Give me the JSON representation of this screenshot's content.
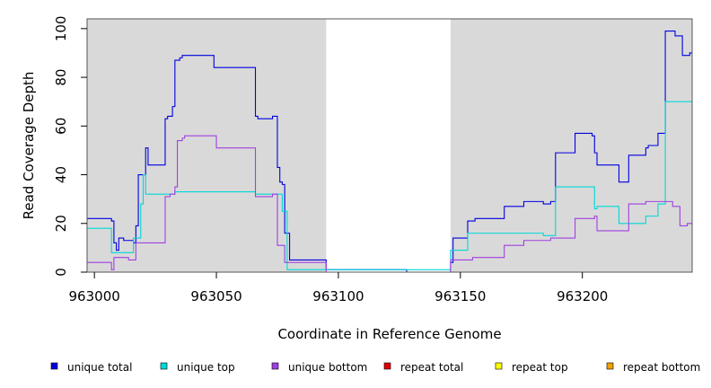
{
  "chart_data": {
    "type": "line",
    "title": "",
    "xlabel": "Coordinate in Reference Genome",
    "ylabel": "Read Coverage Depth",
    "xlim": [
      962997,
      963245
    ],
    "ylim": [
      0,
      104
    ],
    "x_ticks": [
      963000,
      963050,
      963100,
      963150,
      963200
    ],
    "y_ticks": [
      0,
      20,
      40,
      60,
      80,
      100
    ],
    "x_tick_labels": [
      "963000",
      "963050",
      "963100",
      "963150",
      "963200"
    ],
    "y_tick_labels": [
      "0",
      "20",
      "40",
      "60",
      "80",
      "100"
    ],
    "grid": false,
    "background_color": "#d9d9d9",
    "unshaded_region": [
      963095,
      963146
    ],
    "legend_position": "bottom",
    "series": [
      {
        "name": "unique total",
        "color": "#0000e0",
        "points": [
          [
            962997,
            22
          ],
          [
            963002,
            22
          ],
          [
            963002,
            22
          ],
          [
            963007,
            22
          ],
          [
            963007,
            21
          ],
          [
            963008,
            21
          ],
          [
            963008,
            12
          ],
          [
            963009,
            12
          ],
          [
            963009,
            9
          ],
          [
            963010,
            9
          ],
          [
            963010,
            14
          ],
          [
            963012,
            14
          ],
          [
            963012,
            13
          ],
          [
            963016,
            13
          ],
          [
            963016,
            12
          ],
          [
            963017,
            12
          ],
          [
            963017,
            19
          ],
          [
            963018,
            19
          ],
          [
            963018,
            40
          ],
          [
            963021,
            40
          ],
          [
            963021,
            51
          ],
          [
            963022,
            51
          ],
          [
            963022,
            44
          ],
          [
            963026,
            44
          ],
          [
            963026,
            44
          ],
          [
            963029,
            44
          ],
          [
            963029,
            63
          ],
          [
            963030,
            63
          ],
          [
            963030,
            64
          ],
          [
            963032,
            64
          ],
          [
            963032,
            68
          ],
          [
            963033,
            68
          ],
          [
            963033,
            87
          ],
          [
            963035,
            87
          ],
          [
            963035,
            88
          ],
          [
            963036,
            88
          ],
          [
            963036,
            89
          ],
          [
            963045,
            89
          ],
          [
            963045,
            89
          ],
          [
            963049,
            89
          ],
          [
            963049,
            84
          ],
          [
            963063,
            84
          ],
          [
            963063,
            84
          ],
          [
            963066,
            84
          ],
          [
            963066,
            64
          ],
          [
            963067,
            64
          ],
          [
            963067,
            63
          ],
          [
            963073,
            63
          ],
          [
            963073,
            64
          ],
          [
            963075,
            64
          ],
          [
            963075,
            43
          ],
          [
            963076,
            43
          ],
          [
            963076,
            37
          ],
          [
            963077,
            37
          ],
          [
            963077,
            36
          ],
          [
            963078,
            36
          ],
          [
            963078,
            16
          ],
          [
            963080,
            16
          ],
          [
            963080,
            5
          ],
          [
            963095,
            5
          ],
          [
            963095,
            1
          ],
          [
            963105,
            1
          ],
          [
            963105,
            1
          ],
          [
            963128,
            1
          ],
          [
            963128,
            0
          ],
          [
            963146,
            0
          ],
          [
            963146,
            4
          ],
          [
            963147,
            4
          ],
          [
            963147,
            14
          ],
          [
            963153,
            14
          ],
          [
            963153,
            21
          ],
          [
            963156,
            21
          ],
          [
            963156,
            22
          ],
          [
            963161,
            22
          ],
          [
            963161,
            22
          ],
          [
            963168,
            22
          ],
          [
            963168,
            27
          ],
          [
            963176,
            27
          ],
          [
            963176,
            29
          ],
          [
            963184,
            29
          ],
          [
            963184,
            28
          ],
          [
            963187,
            28
          ],
          [
            963187,
            29
          ],
          [
            963189,
            29
          ],
          [
            963189,
            49
          ],
          [
            963197,
            49
          ],
          [
            963197,
            57
          ],
          [
            963204,
            57
          ],
          [
            963204,
            56
          ],
          [
            963205,
            56
          ],
          [
            963205,
            49
          ],
          [
            963206,
            49
          ],
          [
            963206,
            44
          ],
          [
            963212,
            44
          ],
          [
            963212,
            44
          ],
          [
            963215,
            44
          ],
          [
            963215,
            37
          ],
          [
            963219,
            37
          ],
          [
            963219,
            48
          ],
          [
            963226,
            48
          ],
          [
            963226,
            51
          ],
          [
            963227,
            51
          ],
          [
            963227,
            52
          ],
          [
            963231,
            52
          ],
          [
            963231,
            57
          ],
          [
            963234,
            57
          ],
          [
            963234,
            99
          ],
          [
            963238,
            99
          ],
          [
            963238,
            97
          ],
          [
            963241,
            97
          ],
          [
            963241,
            89
          ],
          [
            963244,
            89
          ],
          [
            963244,
            90
          ],
          [
            963245,
            90
          ]
        ]
      },
      {
        "name": "unique top",
        "color": "#00d8d8",
        "points": [
          [
            962997,
            18
          ],
          [
            963005,
            18
          ],
          [
            963005,
            18
          ],
          [
            963007,
            18
          ],
          [
            963007,
            8
          ],
          [
            963016,
            8
          ],
          [
            963016,
            14
          ],
          [
            963019,
            14
          ],
          [
            963019,
            28
          ],
          [
            963020,
            28
          ],
          [
            963020,
            40
          ],
          [
            963021,
            40
          ],
          [
            963021,
            32
          ],
          [
            963033,
            32
          ],
          [
            963033,
            33
          ],
          [
            963063,
            33
          ],
          [
            963063,
            33
          ],
          [
            963066,
            33
          ],
          [
            963066,
            32
          ],
          [
            963073,
            32
          ],
          [
            963073,
            32
          ],
          [
            963077,
            32
          ],
          [
            963077,
            25
          ],
          [
            963079,
            25
          ],
          [
            963079,
            1
          ],
          [
            963095,
            1
          ],
          [
            963095,
            1
          ],
          [
            963146,
            1
          ],
          [
            963146,
            9
          ],
          [
            963153,
            9
          ],
          [
            963153,
            16
          ],
          [
            963170,
            16
          ],
          [
            963170,
            16
          ],
          [
            963184,
            16
          ],
          [
            963184,
            15
          ],
          [
            963189,
            15
          ],
          [
            963189,
            35
          ],
          [
            963202,
            35
          ],
          [
            963202,
            35
          ],
          [
            963205,
            35
          ],
          [
            963205,
            26
          ],
          [
            963206,
            26
          ],
          [
            963206,
            27
          ],
          [
            963215,
            27
          ],
          [
            963215,
            20
          ],
          [
            963226,
            20
          ],
          [
            963226,
            23
          ],
          [
            963231,
            23
          ],
          [
            963231,
            28
          ],
          [
            963234,
            28
          ],
          [
            963234,
            70
          ],
          [
            963245,
            70
          ]
        ]
      },
      {
        "name": "unique bottom",
        "color": "#a040e0",
        "points": [
          [
            962997,
            4
          ],
          [
            963004,
            4
          ],
          [
            963004,
            4
          ],
          [
            963007,
            4
          ],
          [
            963007,
            1
          ],
          [
            963008,
            1
          ],
          [
            963008,
            6
          ],
          [
            963012,
            6
          ],
          [
            963012,
            6
          ],
          [
            963014,
            6
          ],
          [
            963014,
            5
          ],
          [
            963017,
            5
          ],
          [
            963017,
            12
          ],
          [
            963026,
            12
          ],
          [
            963026,
            12
          ],
          [
            963029,
            12
          ],
          [
            963029,
            31
          ],
          [
            963031,
            31
          ],
          [
            963031,
            32
          ],
          [
            963033,
            32
          ],
          [
            963033,
            35
          ],
          [
            963034,
            35
          ],
          [
            963034,
            54
          ],
          [
            963036,
            54
          ],
          [
            963036,
            55
          ],
          [
            963037,
            55
          ],
          [
            963037,
            56
          ],
          [
            963050,
            56
          ],
          [
            963050,
            51
          ],
          [
            963063,
            51
          ],
          [
            963063,
            51
          ],
          [
            963066,
            51
          ],
          [
            963066,
            31
          ],
          [
            963073,
            31
          ],
          [
            963073,
            32
          ],
          [
            963075,
            32
          ],
          [
            963075,
            11
          ],
          [
            963078,
            11
          ],
          [
            963078,
            4
          ],
          [
            963095,
            4
          ],
          [
            963095,
            0
          ],
          [
            963146,
            0
          ],
          [
            963146,
            5
          ],
          [
            963155,
            5
          ],
          [
            963155,
            6
          ],
          [
            963168,
            6
          ],
          [
            963168,
            11
          ],
          [
            963176,
            11
          ],
          [
            963176,
            13
          ],
          [
            963187,
            13
          ],
          [
            963187,
            14
          ],
          [
            963197,
            14
          ],
          [
            963197,
            22
          ],
          [
            963205,
            22
          ],
          [
            963205,
            23
          ],
          [
            963206,
            23
          ],
          [
            963206,
            17
          ],
          [
            963219,
            17
          ],
          [
            963219,
            28
          ],
          [
            963226,
            28
          ],
          [
            963226,
            29
          ],
          [
            963237,
            29
          ],
          [
            963237,
            27
          ],
          [
            963240,
            27
          ],
          [
            963240,
            19
          ],
          [
            963243,
            19
          ],
          [
            963243,
            20
          ],
          [
            963245,
            20
          ]
        ]
      },
      {
        "name": "repeat total",
        "color": "#e00000",
        "points": [
          [
            962997,
            0
          ],
          [
            963245,
            0
          ]
        ]
      },
      {
        "name": "repeat top",
        "color": "#ffff00",
        "points": [
          [
            962997,
            0
          ],
          [
            963245,
            0
          ]
        ]
      },
      {
        "name": "repeat bottom",
        "color": "#f0a000",
        "points": [
          [
            962997,
            0
          ],
          [
            963245,
            0
          ]
        ]
      }
    ]
  }
}
